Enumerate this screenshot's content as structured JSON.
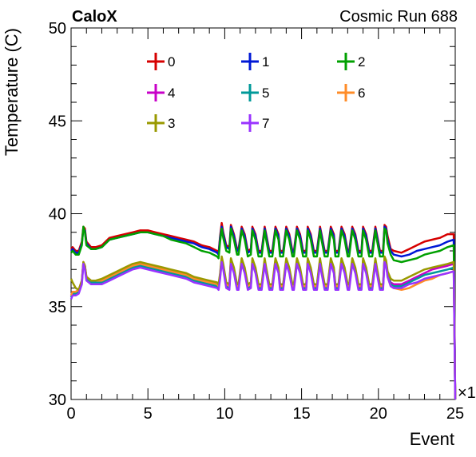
{
  "header": {
    "left_title": "CaloX",
    "right_title": "Cosmic Run 688"
  },
  "chart_data": {
    "type": "line",
    "title": "",
    "xlabel": "Event",
    "ylabel": "Temperature (C)",
    "x_multiplier_label": "×1",
    "xlim": [
      0,
      25
    ],
    "ylim": [
      30,
      50
    ],
    "x_ticks": [
      0,
      5,
      10,
      15,
      20,
      25
    ],
    "x_tick_labels": [
      "0",
      "5",
      "10",
      "15",
      "20",
      "25"
    ],
    "y_ticks": [
      30,
      35,
      40,
      45,
      50
    ],
    "y_tick_labels": [
      "30",
      "35",
      "40",
      "45",
      "50"
    ],
    "legend_placement": "top-center, 3 columns",
    "legend_order": [
      "0",
      "1",
      "2",
      "4",
      "5",
      "6",
      "3",
      "7"
    ],
    "x": [
      0.0,
      0.1,
      0.3,
      0.5,
      0.7,
      0.8,
      0.9,
      1.0,
      1.3,
      1.6,
      2.0,
      2.5,
      3.0,
      3.5,
      4.0,
      4.5,
      5.0,
      5.5,
      6.0,
      6.5,
      7.0,
      7.5,
      8.0,
      8.5,
      9.0,
      9.5,
      9.6,
      9.7,
      9.8,
      9.9,
      10.1,
      10.3,
      10.4,
      10.6,
      10.8,
      10.9,
      11.1,
      11.3,
      11.5,
      11.7,
      11.8,
      12.0,
      12.2,
      12.4,
      12.6,
      12.7,
      12.9,
      13.1,
      13.3,
      13.5,
      13.6,
      13.8,
      14.0,
      14.2,
      14.4,
      14.5,
      14.7,
      14.9,
      15.1,
      15.3,
      15.4,
      15.6,
      15.8,
      16.0,
      16.2,
      16.3,
      16.5,
      16.7,
      16.9,
      17.1,
      17.2,
      17.4,
      17.6,
      17.8,
      18.0,
      18.1,
      18.3,
      18.5,
      18.7,
      18.9,
      19.0,
      19.2,
      19.4,
      19.6,
      19.8,
      19.9,
      20.1,
      20.3,
      20.4,
      20.5,
      20.6,
      20.8,
      21.0,
      21.5,
      22.0,
      22.5,
      23.0,
      23.5,
      24.0,
      24.5,
      24.9,
      25.0
    ],
    "series": [
      {
        "name": "0",
        "color": "#d60000",
        "values": [
          38.1,
          38.2,
          38.0,
          38.0,
          38.5,
          39.3,
          39.2,
          38.5,
          38.2,
          38.2,
          38.3,
          38.7,
          38.8,
          38.9,
          39.0,
          39.1,
          39.1,
          39.0,
          38.9,
          38.8,
          38.7,
          38.6,
          38.5,
          38.3,
          38.2,
          38.0,
          37.9,
          38.8,
          39.5,
          39.0,
          38.3,
          38.2,
          39.4,
          38.9,
          38.1,
          38.1,
          39.3,
          38.9,
          38.0,
          38.1,
          39.3,
          38.9,
          38.0,
          38.0,
          39.3,
          38.9,
          38.0,
          38.0,
          39.3,
          38.9,
          38.0,
          38.0,
          39.3,
          38.9,
          38.0,
          38.0,
          39.3,
          38.9,
          38.0,
          38.0,
          39.3,
          38.9,
          38.0,
          38.0,
          39.3,
          38.9,
          38.0,
          38.0,
          39.3,
          38.9,
          38.0,
          38.0,
          39.3,
          38.9,
          38.0,
          38.0,
          39.3,
          38.9,
          38.0,
          38.0,
          39.3,
          38.9,
          38.0,
          38.0,
          39.3,
          38.9,
          38.0,
          38.0,
          39.4,
          39.3,
          38.8,
          38.1,
          38.0,
          37.9,
          38.1,
          38.3,
          38.5,
          38.6,
          38.7,
          38.9,
          38.9,
          30.0
        ]
      },
      {
        "name": "1",
        "color": "#0018d6",
        "values": [
          38.0,
          38.1,
          37.9,
          37.9,
          38.4,
          39.2,
          39.1,
          38.4,
          38.1,
          38.1,
          38.2,
          38.6,
          38.7,
          38.8,
          38.9,
          39.0,
          39.0,
          38.9,
          38.8,
          38.7,
          38.6,
          38.5,
          38.4,
          38.2,
          38.1,
          37.9,
          37.8,
          38.7,
          39.3,
          38.9,
          38.2,
          38.1,
          39.3,
          38.8,
          38.0,
          38.0,
          39.2,
          38.8,
          37.9,
          38.0,
          39.2,
          38.8,
          37.9,
          37.9,
          39.2,
          38.8,
          37.9,
          37.9,
          39.2,
          38.8,
          37.9,
          37.9,
          39.2,
          38.8,
          37.9,
          37.9,
          39.2,
          38.8,
          37.9,
          37.9,
          39.2,
          38.8,
          37.9,
          37.9,
          39.2,
          38.8,
          37.9,
          37.9,
          39.2,
          38.8,
          37.9,
          37.9,
          39.2,
          38.8,
          37.9,
          37.9,
          39.2,
          38.8,
          37.9,
          37.9,
          39.2,
          38.8,
          37.9,
          37.9,
          39.2,
          38.8,
          37.9,
          37.9,
          39.3,
          39.2,
          38.6,
          38.0,
          37.8,
          37.7,
          37.8,
          38.0,
          38.1,
          38.2,
          38.3,
          38.5,
          38.6,
          30.0
        ]
      },
      {
        "name": "2",
        "color": "#00a000",
        "values": [
          37.9,
          38.0,
          37.8,
          37.8,
          38.3,
          39.3,
          39.0,
          38.3,
          38.1,
          38.1,
          38.2,
          38.6,
          38.7,
          38.8,
          38.9,
          39.0,
          39.0,
          38.9,
          38.8,
          38.6,
          38.5,
          38.4,
          38.2,
          38.0,
          37.9,
          37.7,
          37.6,
          38.5,
          39.2,
          38.7,
          38.0,
          37.9,
          39.2,
          38.6,
          37.8,
          37.8,
          39.1,
          38.6,
          37.7,
          37.8,
          39.1,
          38.6,
          37.7,
          37.7,
          39.1,
          38.6,
          37.7,
          37.7,
          39.1,
          38.6,
          37.7,
          37.7,
          39.1,
          38.6,
          37.7,
          37.7,
          39.1,
          38.6,
          37.7,
          37.7,
          39.1,
          38.6,
          37.7,
          37.7,
          39.1,
          38.6,
          37.7,
          37.7,
          39.1,
          38.6,
          37.7,
          37.7,
          39.1,
          38.6,
          37.7,
          37.7,
          39.1,
          38.6,
          37.7,
          37.7,
          39.1,
          38.6,
          37.7,
          37.7,
          39.1,
          38.6,
          37.7,
          37.7,
          39.2,
          39.1,
          38.4,
          37.8,
          37.5,
          37.4,
          37.5,
          37.6,
          37.8,
          37.9,
          38.0,
          38.2,
          38.3,
          30.0
        ]
      },
      {
        "name": "4",
        "color": "#c800c8",
        "values": [
          35.6,
          35.8,
          35.8,
          35.9,
          36.4,
          37.4,
          37.2,
          36.6,
          36.4,
          36.4,
          36.4,
          36.6,
          36.8,
          37.0,
          37.2,
          37.3,
          37.2,
          37.1,
          37.0,
          36.9,
          36.8,
          36.7,
          36.5,
          36.4,
          36.3,
          36.2,
          36.1,
          36.7,
          37.6,
          37.2,
          36.2,
          36.1,
          37.5,
          37.0,
          36.1,
          36.1,
          37.5,
          37.0,
          36.1,
          36.2,
          37.5,
          37.0,
          36.1,
          36.1,
          37.5,
          37.0,
          36.1,
          36.1,
          37.5,
          37.0,
          36.1,
          36.1,
          37.5,
          37.0,
          36.1,
          36.1,
          37.5,
          37.0,
          36.1,
          36.1,
          37.5,
          37.0,
          36.1,
          36.1,
          37.5,
          37.0,
          36.1,
          36.1,
          37.5,
          37.0,
          36.1,
          36.1,
          37.5,
          37.0,
          36.1,
          36.1,
          37.5,
          37.0,
          36.1,
          36.1,
          37.5,
          37.0,
          36.1,
          36.1,
          37.5,
          37.0,
          36.1,
          36.1,
          37.6,
          37.4,
          36.8,
          36.3,
          36.2,
          36.2,
          36.4,
          36.6,
          36.8,
          37.0,
          37.1,
          37.2,
          37.3,
          30.0
        ]
      },
      {
        "name": "5",
        "color": "#009999",
        "values": [
          35.5,
          35.7,
          35.7,
          35.8,
          36.3,
          37.3,
          37.1,
          36.5,
          36.3,
          36.3,
          36.3,
          36.5,
          36.7,
          36.9,
          37.1,
          37.2,
          37.1,
          37.0,
          36.9,
          36.8,
          36.7,
          36.6,
          36.4,
          36.3,
          36.2,
          36.1,
          36.0,
          36.6,
          37.5,
          37.1,
          36.1,
          36.0,
          37.4,
          36.9,
          36.0,
          36.0,
          37.4,
          36.9,
          36.0,
          36.1,
          37.4,
          36.9,
          36.0,
          36.0,
          37.4,
          36.9,
          36.0,
          36.0,
          37.4,
          36.9,
          36.0,
          36.0,
          37.4,
          36.9,
          36.0,
          36.0,
          37.4,
          36.9,
          36.0,
          36.0,
          37.4,
          36.9,
          36.0,
          36.0,
          37.4,
          36.9,
          36.0,
          36.0,
          37.4,
          36.9,
          36.0,
          36.0,
          37.4,
          36.9,
          36.0,
          36.0,
          37.4,
          36.9,
          36.0,
          36.0,
          37.4,
          36.9,
          36.0,
          36.0,
          37.4,
          36.9,
          36.0,
          36.0,
          37.5,
          37.3,
          36.7,
          36.2,
          36.1,
          36.1,
          36.3,
          36.5,
          36.7,
          36.8,
          36.9,
          37.0,
          37.1,
          30.0
        ]
      },
      {
        "name": "6",
        "color": "#ff8c28",
        "values": [
          35.6,
          35.8,
          35.8,
          35.9,
          36.4,
          37.4,
          37.2,
          36.6,
          36.4,
          36.4,
          36.4,
          36.6,
          36.8,
          37.0,
          37.2,
          37.3,
          37.2,
          37.1,
          37.0,
          36.9,
          36.8,
          36.7,
          36.5,
          36.4,
          36.3,
          36.2,
          36.1,
          36.7,
          37.6,
          37.2,
          36.2,
          36.1,
          37.5,
          37.0,
          36.1,
          36.1,
          37.5,
          37.0,
          36.1,
          36.2,
          37.5,
          37.0,
          36.1,
          36.1,
          37.5,
          37.0,
          36.1,
          36.1,
          37.5,
          37.0,
          36.1,
          36.1,
          37.5,
          37.0,
          36.1,
          36.1,
          37.5,
          37.0,
          36.1,
          36.1,
          37.5,
          37.0,
          36.1,
          36.1,
          37.5,
          37.0,
          36.1,
          36.1,
          37.5,
          37.0,
          36.1,
          36.1,
          37.5,
          37.0,
          36.1,
          36.1,
          37.5,
          37.0,
          36.1,
          36.1,
          37.5,
          37.0,
          36.1,
          36.1,
          37.5,
          37.0,
          36.1,
          36.1,
          37.6,
          37.4,
          36.6,
          36.1,
          36.0,
          35.9,
          36.0,
          36.2,
          36.4,
          36.5,
          36.7,
          36.8,
          36.9,
          30.0
        ]
      },
      {
        "name": "3",
        "color": "#999900",
        "values": [
          36.5,
          36.3,
          36.0,
          35.9,
          36.4,
          37.4,
          37.2,
          36.6,
          36.4,
          36.4,
          36.5,
          36.7,
          36.9,
          37.1,
          37.3,
          37.4,
          37.3,
          37.2,
          37.1,
          37.0,
          36.9,
          36.8,
          36.6,
          36.5,
          36.4,
          36.3,
          36.2,
          36.8,
          37.7,
          37.3,
          36.3,
          36.2,
          37.6,
          37.1,
          36.2,
          36.2,
          37.6,
          37.1,
          36.2,
          36.3,
          37.6,
          37.1,
          36.2,
          36.2,
          37.6,
          37.1,
          36.2,
          36.2,
          37.6,
          37.1,
          36.2,
          36.2,
          37.6,
          37.1,
          36.2,
          36.2,
          37.6,
          37.1,
          36.2,
          36.2,
          37.6,
          37.1,
          36.2,
          36.2,
          37.6,
          37.1,
          36.2,
          36.2,
          37.6,
          37.1,
          36.2,
          36.2,
          37.6,
          37.1,
          36.2,
          36.2,
          37.6,
          37.1,
          36.2,
          36.2,
          37.6,
          37.1,
          36.2,
          36.2,
          37.6,
          37.1,
          36.2,
          36.2,
          37.7,
          37.5,
          36.9,
          36.5,
          36.4,
          36.4,
          36.6,
          36.8,
          37.0,
          37.1,
          37.2,
          37.3,
          37.4,
          30.0
        ]
      },
      {
        "name": "7",
        "color": "#9933ff",
        "values": [
          35.4,
          35.6,
          35.6,
          35.7,
          36.2,
          37.3,
          37.0,
          36.4,
          36.2,
          36.2,
          36.2,
          36.4,
          36.6,
          36.8,
          37.0,
          37.1,
          37.0,
          36.9,
          36.8,
          36.7,
          36.6,
          36.5,
          36.3,
          36.2,
          36.1,
          36.0,
          35.9,
          36.5,
          37.4,
          37.0,
          36.0,
          35.9,
          37.3,
          36.8,
          35.9,
          35.9,
          37.3,
          36.8,
          35.9,
          36.0,
          37.3,
          36.8,
          35.9,
          35.9,
          37.3,
          36.8,
          35.9,
          35.9,
          37.3,
          36.8,
          35.9,
          35.9,
          37.3,
          36.8,
          35.9,
          35.9,
          37.3,
          36.8,
          35.9,
          35.9,
          37.3,
          36.8,
          35.9,
          35.9,
          37.3,
          36.8,
          35.9,
          35.9,
          37.3,
          36.8,
          35.9,
          35.9,
          37.3,
          36.8,
          35.9,
          35.9,
          37.3,
          36.8,
          35.9,
          35.9,
          37.3,
          36.8,
          35.9,
          35.9,
          37.3,
          36.8,
          35.9,
          35.9,
          37.4,
          37.2,
          36.6,
          36.1,
          36.0,
          36.0,
          36.2,
          36.3,
          36.5,
          36.6,
          36.7,
          36.8,
          36.9,
          30.0
        ]
      }
    ]
  }
}
